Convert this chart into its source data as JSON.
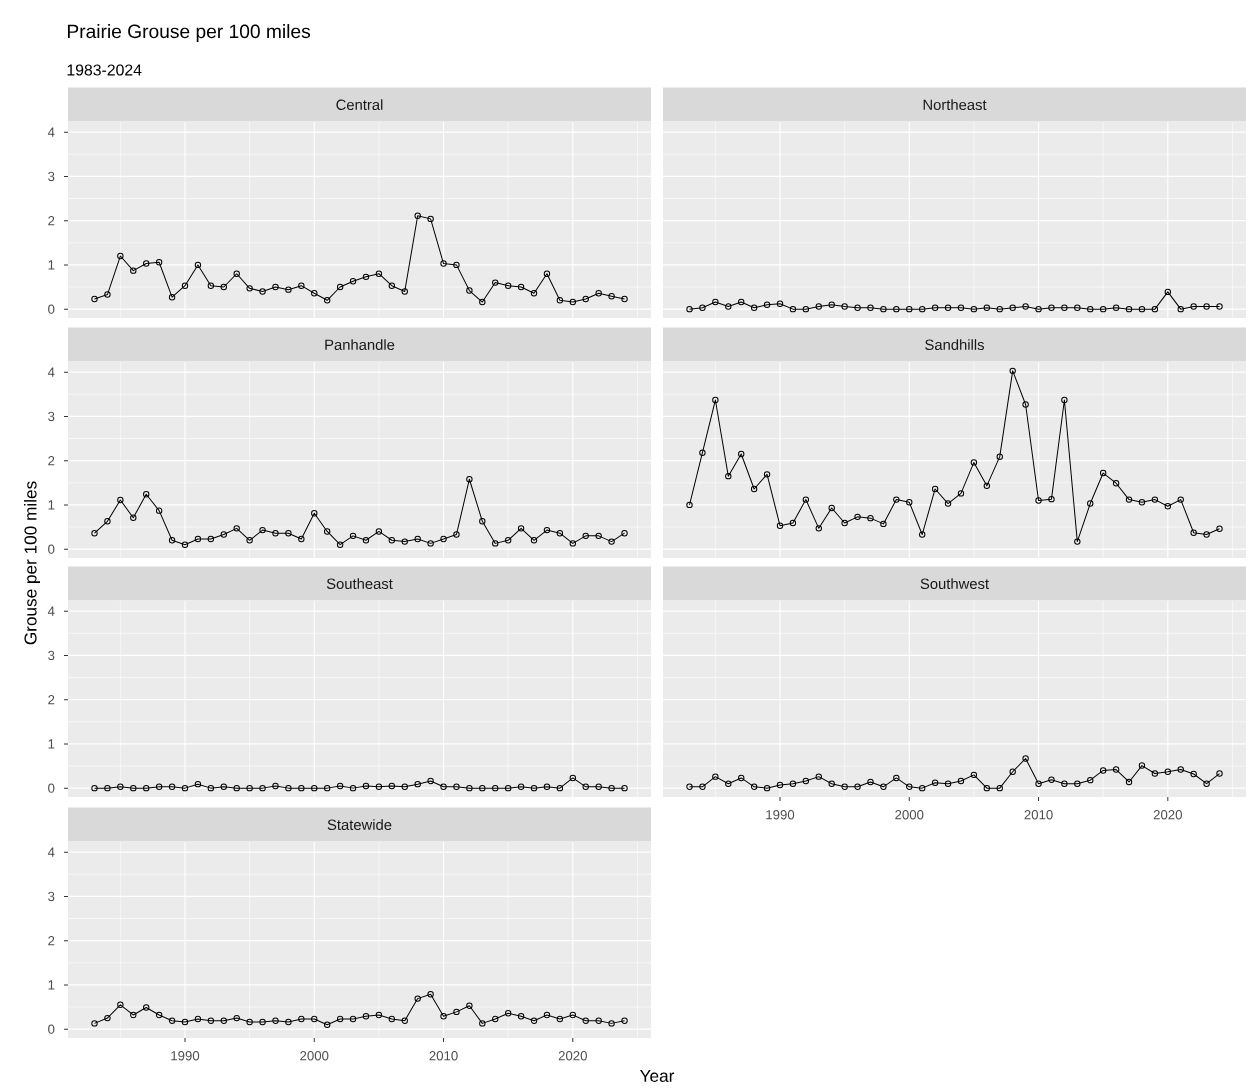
{
  "chart_data": [
    {
      "type": "line",
      "title": "Central",
      "annotations": [
        "Prairie Grouse per 100 miles",
        "1983-2024"
      ],
      "x": [
        1983,
        1984,
        1985,
        1986,
        1987,
        1988,
        1989,
        1990,
        1991,
        1992,
        1993,
        1994,
        1995,
        1996,
        1997,
        1998,
        1999,
        2000,
        2001,
        2002,
        2003,
        2004,
        2005,
        2006,
        2007,
        2008,
        2009,
        2010,
        2011,
        2012,
        2013,
        2014,
        2015,
        2016,
        2017,
        2018,
        2019,
        2020,
        2021,
        2022,
        2023,
        2024
      ],
      "values": [
        0.23,
        0.33,
        1.2,
        0.87,
        1.03,
        1.06,
        0.27,
        0.53,
        1.0,
        0.53,
        0.5,
        0.8,
        0.47,
        0.4,
        0.5,
        0.44,
        0.53,
        0.36,
        0.2,
        0.5,
        0.63,
        0.73,
        0.8,
        0.53,
        0.4,
        2.11,
        2.04,
        1.03,
        1.0,
        0.42,
        0.16,
        0.6,
        0.53,
        0.5,
        0.36,
        0.8,
        0.2,
        0.16,
        0.23,
        0.36,
        0.29,
        0.23
      ],
      "color": "#000000",
      "marker": "circle",
      "grid": true,
      "xlim": [
        1980.95,
        2026.05
      ],
      "ylim": [
        -0.2,
        4.23
      ],
      "xticks": [
        1990,
        2000,
        2010,
        2020
      ],
      "yticks": [
        0,
        1,
        2,
        3,
        4
      ],
      "tick_labels": "y"
    },
    {
      "type": "line",
      "title": "Northeast",
      "x": [
        1983,
        1984,
        1985,
        1986,
        1987,
        1988,
        1989,
        1990,
        1991,
        1992,
        1993,
        1994,
        1995,
        1996,
        1997,
        1998,
        1999,
        2000,
        2001,
        2002,
        2003,
        2004,
        2005,
        2006,
        2007,
        2008,
        2009,
        2010,
        2011,
        2012,
        2013,
        2014,
        2015,
        2016,
        2017,
        2018,
        2019,
        2020,
        2021,
        2022,
        2023,
        2024
      ],
      "values": [
        0,
        0.03,
        0.16,
        0.06,
        0.16,
        0.03,
        0.1,
        0.12,
        0,
        0,
        0.06,
        0.1,
        0.06,
        0.03,
        0.03,
        0,
        0,
        0,
        0,
        0.03,
        0.03,
        0.03,
        0,
        0.03,
        0,
        0.03,
        0.06,
        0,
        0.03,
        0.03,
        0.03,
        0,
        0,
        0.03,
        0,
        0,
        0,
        0.39,
        0,
        0.06,
        0.06,
        0.06
      ],
      "color": "#000000",
      "marker": "circle",
      "grid": true,
      "xlim": [
        1980.95,
        2026.05
      ],
      "ylim": [
        -0.2,
        4.23
      ],
      "xticks": [
        1990,
        2000,
        2010,
        2020
      ],
      "yticks": [
        0,
        1,
        2,
        3,
        4
      ],
      "tick_labels": false
    },
    {
      "type": "line",
      "title": "Panhandle",
      "x": [
        1983,
        1984,
        1985,
        1986,
        1987,
        1988,
        1989,
        1990,
        1991,
        1992,
        1993,
        1994,
        1995,
        1996,
        1997,
        1998,
        1999,
        2000,
        2001,
        2002,
        2003,
        2004,
        2005,
        2006,
        2007,
        2008,
        2009,
        2010,
        2011,
        2012,
        2013,
        2014,
        2015,
        2016,
        2017,
        2018,
        2019,
        2020,
        2021,
        2022,
        2023,
        2024
      ],
      "values": [
        0.36,
        0.63,
        1.11,
        0.71,
        1.24,
        0.87,
        0.2,
        0.1,
        0.23,
        0.23,
        0.33,
        0.47,
        0.2,
        0.43,
        0.36,
        0.36,
        0.23,
        0.81,
        0.4,
        0.1,
        0.3,
        0.2,
        0.4,
        0.2,
        0.17,
        0.23,
        0.13,
        0.23,
        0.33,
        1.58,
        0.63,
        0.13,
        0.2,
        0.47,
        0.2,
        0.43,
        0.36,
        0.13,
        0.3,
        0.3,
        0.17,
        0.36
      ],
      "color": "#000000",
      "marker": "circle",
      "grid": true,
      "xlim": [
        1980.95,
        2026.05
      ],
      "ylim": [
        -0.2,
        4.23
      ],
      "xticks": [
        1990,
        2000,
        2010,
        2020
      ],
      "yticks": [
        0,
        1,
        2,
        3,
        4
      ],
      "tick_labels": "y"
    },
    {
      "type": "line",
      "title": "Sandhills",
      "x": [
        1983,
        1984,
        1985,
        1986,
        1987,
        1988,
        1989,
        1990,
        1991,
        1992,
        1993,
        1994,
        1995,
        1996,
        1997,
        1998,
        1999,
        2000,
        2001,
        2002,
        2003,
        2004,
        2005,
        2006,
        2007,
        2008,
        2009,
        2010,
        2011,
        2012,
        2013,
        2014,
        2015,
        2016,
        2017,
        2018,
        2019,
        2020,
        2021,
        2022,
        2023,
        2024
      ],
      "values": [
        1.0,
        2.18,
        3.37,
        1.65,
        2.15,
        1.36,
        1.69,
        0.53,
        0.59,
        1.12,
        0.47,
        0.93,
        0.59,
        0.73,
        0.7,
        0.57,
        1.12,
        1.06,
        0.33,
        1.36,
        1.03,
        1.26,
        1.96,
        1.43,
        2.09,
        4.03,
        3.27,
        1.1,
        1.13,
        3.37,
        0.17,
        1.03,
        1.72,
        1.49,
        1.12,
        1.06,
        1.12,
        0.97,
        1.12,
        0.37,
        0.33,
        0.46
      ],
      "color": "#000000",
      "marker": "circle",
      "grid": true,
      "xlim": [
        1980.95,
        2026.05
      ],
      "ylim": [
        -0.2,
        4.23
      ],
      "xticks": [
        1990,
        2000,
        2010,
        2020
      ],
      "yticks": [
        0,
        1,
        2,
        3,
        4
      ],
      "tick_labels": false
    },
    {
      "type": "line",
      "title": "Southeast",
      "ylabel": "Grouse per 100 miles",
      "x": [
        1983,
        1984,
        1985,
        1986,
        1987,
        1988,
        1989,
        1990,
        1991,
        1992,
        1993,
        1994,
        1995,
        1996,
        1997,
        1998,
        1999,
        2000,
        2001,
        2002,
        2003,
        2004,
        2005,
        2006,
        2007,
        2008,
        2009,
        2010,
        2011,
        2012,
        2013,
        2014,
        2015,
        2016,
        2017,
        2018,
        2019,
        2020,
        2021,
        2022,
        2023,
        2024
      ],
      "values": [
        0,
        0,
        0.03,
        0,
        0,
        0.03,
        0.03,
        0,
        0.09,
        0,
        0.03,
        0,
        0,
        0,
        0.05,
        0,
        0,
        0,
        0,
        0.05,
        0,
        0.05,
        0.03,
        0.05,
        0.03,
        0.09,
        0.16,
        0.03,
        0.03,
        0,
        0,
        0,
        0,
        0.03,
        0,
        0.03,
        0,
        0.23,
        0.03,
        0.03,
        0,
        0
      ],
      "color": "#000000",
      "marker": "circle",
      "grid": true,
      "xlim": [
        1980.95,
        2026.05
      ],
      "ylim": [
        -0.2,
        4.23
      ],
      "xticks": [
        1990,
        2000,
        2010,
        2020
      ],
      "yticks": [
        0,
        1,
        2,
        3,
        4
      ],
      "tick_labels": "y"
    },
    {
      "type": "line",
      "title": "Southwest",
      "x": [
        1983,
        1984,
        1985,
        1986,
        1987,
        1988,
        1989,
        1990,
        1991,
        1992,
        1993,
        1994,
        1995,
        1996,
        1997,
        1998,
        1999,
        2000,
        2001,
        2002,
        2003,
        2004,
        2005,
        2006,
        2007,
        2008,
        2009,
        2010,
        2011,
        2012,
        2013,
        2014,
        2015,
        2016,
        2017,
        2018,
        2019,
        2020,
        2021,
        2022,
        2023,
        2024
      ],
      "values": [
        0.03,
        0.03,
        0.26,
        0.1,
        0.23,
        0.03,
        0,
        0.07,
        0.1,
        0.16,
        0.26,
        0.1,
        0.03,
        0.03,
        0.14,
        0.03,
        0.23,
        0.03,
        0,
        0.12,
        0.1,
        0.16,
        0.3,
        0,
        0,
        0.37,
        0.67,
        0.1,
        0.19,
        0.1,
        0.1,
        0.18,
        0.4,
        0.42,
        0.14,
        0.51,
        0.33,
        0.37,
        0.42,
        0.32,
        0.1,
        0.33
      ],
      "color": "#000000",
      "marker": "circle",
      "grid": true,
      "xlim": [
        1980.95,
        2026.05
      ],
      "ylim": [
        -0.2,
        4.23
      ],
      "xticks": [
        1990,
        2000,
        2010,
        2020
      ],
      "yticks": [
        0,
        1,
        2,
        3,
        4
      ],
      "tick_labels": "x"
    },
    {
      "type": "line",
      "title": "Statewide",
      "xlabel": "Year",
      "x": [
        1983,
        1984,
        1985,
        1986,
        1987,
        1988,
        1989,
        1990,
        1991,
        1992,
        1993,
        1994,
        1995,
        1996,
        1997,
        1998,
        1999,
        2000,
        2001,
        2002,
        2003,
        2004,
        2005,
        2006,
        2007,
        2008,
        2009,
        2010,
        2011,
        2012,
        2013,
        2014,
        2015,
        2016,
        2017,
        2018,
        2019,
        2020,
        2021,
        2022,
        2023,
        2024
      ],
      "values": [
        0.13,
        0.25,
        0.55,
        0.32,
        0.49,
        0.32,
        0.19,
        0.16,
        0.23,
        0.19,
        0.19,
        0.25,
        0.16,
        0.16,
        0.19,
        0.16,
        0.23,
        0.23,
        0.1,
        0.23,
        0.23,
        0.29,
        0.32,
        0.23,
        0.19,
        0.69,
        0.79,
        0.29,
        0.39,
        0.53,
        0.13,
        0.23,
        0.36,
        0.29,
        0.19,
        0.32,
        0.23,
        0.32,
        0.19,
        0.19,
        0.13,
        0.19
      ],
      "color": "#000000",
      "marker": "circle",
      "grid": true,
      "xlim": [
        1980.95,
        2026.05
      ],
      "ylim": [
        -0.2,
        4.23
      ],
      "xticks": [
        1990,
        2000,
        2010,
        2020
      ],
      "yticks": [
        0,
        1,
        2,
        3,
        4
      ]
    }
  ]
}
